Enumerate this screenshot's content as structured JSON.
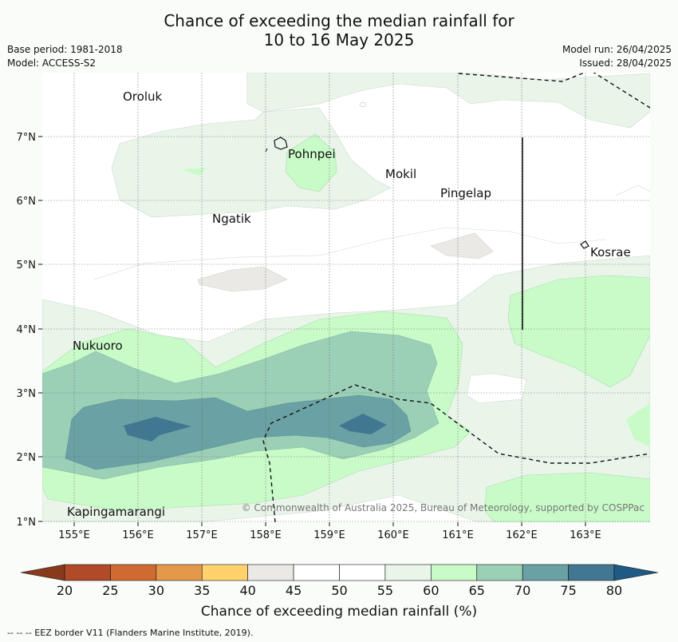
{
  "title_line1": "Chance of exceeding the median rainfall for",
  "title_line2": "10 to 16 May 2025",
  "base_period": "Base period: 1981-2018",
  "model": "Model: ACCESS-S2",
  "model_run": "Model run: 26/04/2025",
  "issued": "Issued: 28/04/2025",
  "copyright": "© Commonwealth of Australia 2025, Bureau of Meteorology, supported by COSPPac",
  "lat_labels": [
    "7°N",
    "6°N",
    "5°N",
    "4°N",
    "3°N",
    "2°N",
    "1°N"
  ],
  "lon_labels": [
    "155°E",
    "156°E",
    "157°E",
    "158°E",
    "159°E",
    "160°E",
    "161°E",
    "162°E",
    "163°E"
  ],
  "places": [
    {
      "name": "Oroluk"
    },
    {
      "name": "Pohnpei"
    },
    {
      "name": "Mokil"
    },
    {
      "name": "Pingelap"
    },
    {
      "name": "Ngatik"
    },
    {
      "name": "Kosrae"
    },
    {
      "name": "Nukuoro"
    },
    {
      "name": "Kapingamarangi"
    }
  ],
  "colorbar": {
    "ticks": [
      "20",
      "25",
      "30",
      "35",
      "40",
      "45",
      "50",
      "55",
      "60",
      "65",
      "70",
      "75",
      "80"
    ],
    "colors": [
      "#b04a28",
      "#cf6a33",
      "#e4994a",
      "#ffd26e",
      "#ebe9e6",
      "#ffffff",
      "#ffffff",
      "#e9f5e9",
      "#c9fbc9",
      "#9bcfb6",
      "#6aa1a4",
      "#427792"
    ],
    "under_color": "#8a3a1c",
    "over_color": "#1f5a85",
    "label": "Chance of exceeding median rainfall (%)"
  },
  "footnote": "--  --  -- EEZ border V11 (Flanders Marine Institute, 2019)."
}
